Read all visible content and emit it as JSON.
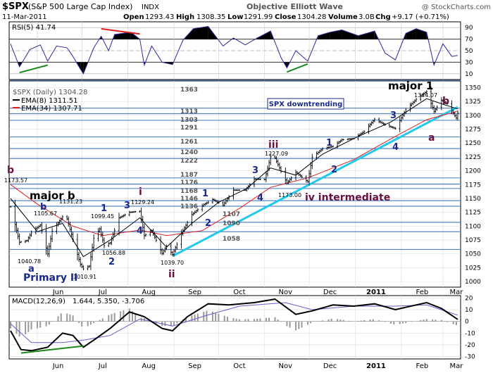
{
  "header": {
    "symbol": "$SPX",
    "name": "(S&P 500 Large Cap Index)",
    "exchange": "INDX",
    "source": "Objective Elliott Wave",
    "copyright": "@ StockCharts.com",
    "date": "11-Mar-2011",
    "open_label": "Open",
    "open": "1293.43",
    "high_label": "High",
    "high": "1308.35",
    "low_label": "Low",
    "low": "1291.99",
    "close_label": "Close",
    "close": "1304.28",
    "volume_label": "Volume",
    "volume": "3.0B",
    "chg_label": "Chg",
    "chg": "+9.17 (+0.71%)"
  },
  "colors": {
    "price_bars": "#000000",
    "ema8": "#000000",
    "ema34": "#e02020",
    "trendline": "#22c8ee",
    "support_lines": "#5a86c8",
    "wave_label": "#1a2a8a",
    "corrective_label": "#6a1040",
    "rsi_line": "#2a2a9a",
    "macd_line": "#000000",
    "signal_line": "#6a5acd",
    "histogram": "#9a9a9a",
    "green_divergence": "#1a8a1a",
    "red_divergence": "#e02020"
  },
  "rsi": {
    "legend": "RSI(5) 41.74",
    "levels": [
      "90",
      "70",
      "50",
      "30",
      "10"
    ]
  },
  "macd": {
    "legend_name": "MACD(12,26,9)",
    "legend_values": "1.644, 5.350, -3.706",
    "levels": [
      "20",
      "10",
      "0",
      "-10",
      "-20",
      "-30"
    ]
  },
  "price_legend": {
    "symbol": "$SPX (Daily) 1304.28",
    "ema8": "EMA(8) 1311.51",
    "ema34": "EMA(34) 1307.71"
  },
  "annotation_box": "SPX downtrending",
  "x_labels": [
    "Jun",
    "Jul",
    "Aug",
    "Sep",
    "Oct",
    "Nov",
    "Dec",
    "2011",
    "Feb",
    "Mar"
  ],
  "price_axis": [
    "1350",
    "1325",
    "1300",
    "1275",
    "1250",
    "1225",
    "1200",
    "1175",
    "1150",
    "1125",
    "1100",
    "1075",
    "1050",
    "1025",
    "1000"
  ],
  "level_labels": [
    "1363",
    "1313",
    "1303",
    "1291",
    "1261",
    "1240",
    "1222",
    "1187",
    "1176",
    "1168",
    "1146",
    "1136",
    "1107",
    "1090",
    "1058"
  ],
  "price_labels": [
    "1173.57",
    "1105.67",
    "1131.23",
    "1040.78",
    "1010.91",
    "1099.45",
    "1056.88",
    "1129.24",
    "1039.70",
    "1227.09",
    "1173.00",
    "1344.07"
  ],
  "wave_labels": {
    "b_top": "b",
    "major_b": "major b",
    "b_small": "b",
    "a": "a",
    "primary_ii": "Primary II",
    "one_1": "1",
    "two_1": "2",
    "iii_1": "3",
    "i_top": "i",
    "four_1": "4",
    "ii_bottom": "ii",
    "one_2": "1",
    "two_2": "2",
    "three_2": "3",
    "four_2": "4",
    "iii": "iii",
    "iv": "iv intermediate",
    "one_3": "1",
    "two_3": "2",
    "three_3": "3",
    "four_3": "4",
    "major_1": "major 1",
    "b_mar": "b",
    "a_mar": "a"
  },
  "chart_data": {
    "type": "line",
    "title": "$SPX (S&P 500 Large Cap Index) INDX",
    "ylabel": "",
    "xlabel": "",
    "ylim": [
      990,
      1362
    ],
    "x_range": [
      "2010-05-14",
      "2011-03-11"
    ],
    "price_points": [
      [
        "2010-05-14",
        1135
      ],
      [
        "2010-05-20",
        1071
      ],
      [
        "2010-05-25",
        1074
      ],
      [
        "2010-05-28",
        1089
      ],
      [
        "2010-06-03",
        1102
      ],
      [
        "2010-06-08",
        1050
      ],
      [
        "2010-06-11",
        1091
      ],
      [
        "2010-06-18",
        1117
      ],
      [
        "2010-06-21",
        1113
      ],
      [
        "2010-06-25",
        1076
      ],
      [
        "2010-06-30",
        1031
      ],
      [
        "2010-07-02",
        1023
      ],
      [
        "2010-07-06",
        1028
      ],
      [
        "2010-07-09",
        1078
      ],
      [
        "2010-07-13",
        1095
      ],
      [
        "2010-07-16",
        1065
      ],
      [
        "2010-07-20",
        1070
      ],
      [
        "2010-07-26",
        1115
      ],
      [
        "2010-08-02",
        1125
      ],
      [
        "2010-08-09",
        1127
      ],
      [
        "2010-08-12",
        1083
      ],
      [
        "2010-08-17",
        1092
      ],
      [
        "2010-08-24",
        1051
      ],
      [
        "2010-08-27",
        1064
      ],
      [
        "2010-08-31",
        1049
      ],
      [
        "2010-09-07",
        1092
      ],
      [
        "2010-09-13",
        1121
      ],
      [
        "2010-09-21",
        1139
      ],
      [
        "2010-09-27",
        1148
      ],
      [
        "2010-10-04",
        1138
      ],
      [
        "2010-10-11",
        1165
      ],
      [
        "2010-10-19",
        1165
      ],
      [
        "2010-10-25",
        1185
      ],
      [
        "2010-11-01",
        1184
      ],
      [
        "2010-11-05",
        1225
      ],
      [
        "2010-11-08",
        1223
      ],
      [
        "2010-11-12",
        1199
      ],
      [
        "2010-11-16",
        1178
      ],
      [
        "2010-11-22",
        1197
      ],
      [
        "2010-11-30",
        1180
      ],
      [
        "2010-12-03",
        1224
      ],
      [
        "2010-12-10",
        1240
      ],
      [
        "2010-12-17",
        1244
      ],
      [
        "2010-12-23",
        1256
      ],
      [
        "2010-12-31",
        1258
      ],
      [
        "2011-01-07",
        1271
      ],
      [
        "2011-01-14",
        1293
      ],
      [
        "2011-01-21",
        1283
      ],
      [
        "2011-01-28",
        1276
      ],
      [
        "2011-02-04",
        1310
      ],
      [
        "2011-02-11",
        1329
      ],
      [
        "2011-02-18",
        1343
      ],
      [
        "2011-02-23",
        1307
      ],
      [
        "2011-02-28",
        1327
      ],
      [
        "2011-03-04",
        1321
      ],
      [
        "2011-03-10",
        1295
      ],
      [
        "2011-03-11",
        1304
      ]
    ],
    "ema8_points": [
      [
        "2010-05-14",
        1150
      ],
      [
        "2010-06-01",
        1090
      ],
      [
        "2010-06-18",
        1105
      ],
      [
        "2010-07-02",
        1045
      ],
      [
        "2010-07-20",
        1075
      ],
      [
        "2010-08-09",
        1115
      ],
      [
        "2010-08-27",
        1062
      ],
      [
        "2010-09-13",
        1105
      ],
      [
        "2010-10-01",
        1143
      ],
      [
        "2010-10-20",
        1168
      ],
      [
        "2010-11-05",
        1205
      ],
      [
        "2010-11-22",
        1192
      ],
      [
        "2010-12-10",
        1230
      ],
      [
        "2011-01-03",
        1262
      ],
      [
        "2011-01-25",
        1288
      ],
      [
        "2011-02-18",
        1330
      ],
      [
        "2011-03-01",
        1320
      ],
      [
        "2011-03-11",
        1311.51
      ]
    ],
    "ema34_points": [
      [
        "2010-05-14",
        1175
      ],
      [
        "2010-06-01",
        1140
      ],
      [
        "2010-06-25",
        1100
      ],
      [
        "2010-07-15",
        1083
      ],
      [
        "2010-08-09",
        1093
      ],
      [
        "2010-08-27",
        1083
      ],
      [
        "2010-09-20",
        1092
      ],
      [
        "2010-10-15",
        1132
      ],
      [
        "2010-11-05",
        1170
      ],
      [
        "2010-11-30",
        1187
      ],
      [
        "2010-12-31",
        1220
      ],
      [
        "2011-01-28",
        1262
      ],
      [
        "2011-02-18",
        1292
      ],
      [
        "2011-03-11",
        1307.71
      ]
    ],
    "trendline": [
      [
        "2010-08-31",
        1046
      ],
      [
        "2011-03-11",
        1315
      ]
    ],
    "rsi_points": [
      [
        "2010-05-14",
        62
      ],
      [
        "2010-05-20",
        22
      ],
      [
        "2010-05-27",
        52
      ],
      [
        "2010-06-03",
        60
      ],
      [
        "2010-06-08",
        32
      ],
      [
        "2010-06-14",
        58
      ],
      [
        "2010-06-21",
        55
      ],
      [
        "2010-06-25",
        40
      ],
      [
        "2010-06-30",
        18
      ],
      [
        "2010-07-02",
        10
      ],
      [
        "2010-07-09",
        55
      ],
      [
        "2010-07-14",
        75
      ],
      [
        "2010-07-19",
        50
      ],
      [
        "2010-07-23",
        78
      ],
      [
        "2010-08-03",
        82
      ],
      [
        "2010-08-09",
        70
      ],
      [
        "2010-08-12",
        25
      ],
      [
        "2010-08-17",
        58
      ],
      [
        "2010-08-24",
        30
      ],
      [
        "2010-08-31",
        26
      ],
      [
        "2010-09-07",
        68
      ],
      [
        "2010-09-14",
        88
      ],
      [
        "2010-09-24",
        92
      ],
      [
        "2010-10-04",
        58
      ],
      [
        "2010-10-11",
        72
      ],
      [
        "2010-10-19",
        60
      ],
      [
        "2010-10-27",
        72
      ],
      [
        "2010-11-05",
        84
      ],
      [
        "2010-11-12",
        38
      ],
      [
        "2010-11-16",
        20
      ],
      [
        "2010-11-22",
        50
      ],
      [
        "2010-11-30",
        32
      ],
      [
        "2010-12-07",
        76
      ],
      [
        "2010-12-15",
        82
      ],
      [
        "2010-12-23",
        86
      ],
      [
        "2011-01-03",
        76
      ],
      [
        "2011-01-14",
        84
      ],
      [
        "2011-01-21",
        46
      ],
      [
        "2011-01-28",
        34
      ],
      [
        "2011-02-04",
        80
      ],
      [
        "2011-02-11",
        88
      ],
      [
        "2011-02-18",
        82
      ],
      [
        "2011-02-23",
        25
      ],
      [
        "2011-03-01",
        62
      ],
      [
        "2011-03-07",
        40
      ],
      [
        "2011-03-11",
        41.74
      ]
    ],
    "macd_points": [
      [
        "2010-05-14",
        -8
      ],
      [
        "2010-05-21",
        -24
      ],
      [
        "2010-05-28",
        -25
      ],
      [
        "2010-06-08",
        -22
      ],
      [
        "2010-06-18",
        -10
      ],
      [
        "2010-06-25",
        -12
      ],
      [
        "2010-07-02",
        -22
      ],
      [
        "2010-07-09",
        -16
      ],
      [
        "2010-07-20",
        -6
      ],
      [
        "2010-08-02",
        8
      ],
      [
        "2010-08-12",
        4
      ],
      [
        "2010-08-24",
        -6
      ],
      [
        "2010-08-31",
        -8
      ],
      [
        "2010-09-10",
        4
      ],
      [
        "2010-09-24",
        15
      ],
      [
        "2010-10-08",
        14
      ],
      [
        "2010-10-25",
        16
      ],
      [
        "2010-11-08",
        19
      ],
      [
        "2010-11-22",
        6
      ],
      [
        "2010-12-03",
        9
      ],
      [
        "2010-12-17",
        14
      ],
      [
        "2010-12-31",
        13
      ],
      [
        "2011-01-14",
        15
      ],
      [
        "2011-01-28",
        10
      ],
      [
        "2011-02-11",
        14
      ],
      [
        "2011-02-18",
        16
      ],
      [
        "2011-02-28",
        11
      ],
      [
        "2011-03-11",
        1.644
      ]
    ],
    "signal_points": [
      [
        "2010-05-14",
        -2
      ],
      [
        "2010-05-28",
        -18
      ],
      [
        "2010-06-18",
        -18
      ],
      [
        "2010-07-02",
        -16
      ],
      [
        "2010-07-20",
        -12
      ],
      [
        "2010-08-09",
        2
      ],
      [
        "2010-08-31",
        -4
      ],
      [
        "2010-09-20",
        4
      ],
      [
        "2010-10-15",
        13
      ],
      [
        "2010-11-15",
        16
      ],
      [
        "2010-12-03",
        10
      ],
      [
        "2010-12-31",
        13
      ],
      [
        "2011-01-28",
        13
      ],
      [
        "2011-02-18",
        14
      ],
      [
        "2011-03-11",
        5.35
      ]
    ],
    "rsi_divergences": [
      {
        "kind": "bullish",
        "from": [
          "2010-05-20",
          12
        ],
        "to": [
          "2010-06-08",
          25
        ]
      },
      {
        "kind": "bearish",
        "from": [
          "2010-07-14",
          88
        ],
        "to": [
          "2010-08-09",
          79
        ]
      },
      {
        "kind": "bullish",
        "from": [
          "2010-11-16",
          13
        ],
        "to": [
          "2010-11-30",
          27
        ]
      }
    ],
    "macd_divergences": [
      {
        "kind": "bullish",
        "from": [
          "2010-05-21",
          -27
        ],
        "to": [
          "2010-07-02",
          -21
        ]
      }
    ],
    "horizontal_levels": [
      1363,
      1313,
      1303,
      1291,
      1261,
      1240,
      1222,
      1187,
      1176,
      1168,
      1146,
      1136,
      1107,
      1090,
      1058
    ],
    "price_annotations": [
      {
        "date": "2010-05-14",
        "value": 1173.57
      },
      {
        "date": "2010-06-04",
        "value": 1105.67
      },
      {
        "date": "2010-06-21",
        "value": 1131.23
      },
      {
        "date": "2010-06-07",
        "value": 1040.78
      },
      {
        "date": "2010-07-01",
        "value": 1010.91
      },
      {
        "date": "2010-07-14",
        "value": 1099.45
      },
      {
        "date": "2010-07-20",
        "value": 1056.88
      },
      {
        "date": "2010-08-09",
        "value": 1129.24
      },
      {
        "date": "2010-08-27",
        "value": 1039.7
      },
      {
        "date": "2010-11-05",
        "value": 1227.09
      },
      {
        "date": "2010-11-29",
        "value": 1173.0
      },
      {
        "date": "2011-02-18",
        "value": 1344.07
      }
    ]
  }
}
